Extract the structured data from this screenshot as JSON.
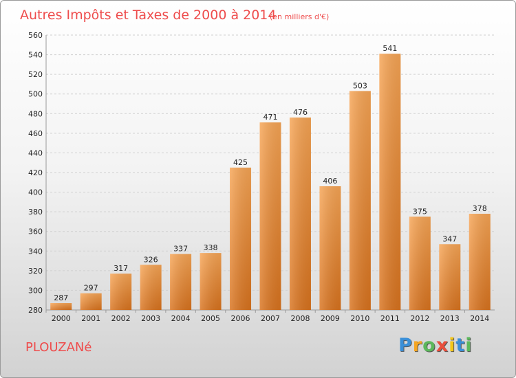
{
  "chart_data": {
    "type": "bar",
    "title": "Autres Impôts et Taxes de 2000 à 2014",
    "subtitle": "(en milliers d'€)",
    "categories": [
      "2000",
      "2001",
      "2002",
      "2003",
      "2004",
      "2005",
      "2006",
      "2007",
      "2008",
      "2009",
      "2010",
      "2011",
      "2012",
      "2013",
      "2014"
    ],
    "values": [
      287,
      297,
      317,
      326,
      337,
      338,
      425,
      471,
      476,
      406,
      503,
      541,
      375,
      347,
      378
    ],
    "ylim": [
      280,
      560
    ],
    "yticks": [
      280,
      300,
      320,
      340,
      360,
      380,
      400,
      420,
      440,
      460,
      480,
      500,
      520,
      540,
      560
    ],
    "grid": true,
    "bar_color": "#f0923a"
  },
  "place_name": "PLOUZANé",
  "logo": {
    "letters": [
      "P",
      "r",
      "o",
      "x",
      "i",
      "t",
      "i"
    ],
    "colors": [
      "#3a8fd8",
      "#f5a623",
      "#5cb85c",
      "#e94e3c",
      "#f5c71a",
      "#3a8fd8",
      "#5cb85c"
    ]
  }
}
